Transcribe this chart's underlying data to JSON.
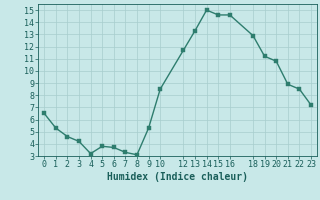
{
  "x": [
    0,
    1,
    2,
    3,
    4,
    5,
    6,
    7,
    8,
    9,
    10,
    12,
    13,
    14,
    15,
    16,
    18,
    19,
    20,
    21,
    22,
    23
  ],
  "y": [
    6.5,
    5.3,
    4.6,
    4.2,
    3.2,
    3.8,
    3.7,
    3.3,
    3.1,
    5.3,
    8.5,
    11.7,
    13.3,
    15.0,
    14.6,
    14.6,
    12.9,
    11.2,
    10.8,
    8.9,
    8.5,
    7.2
  ],
  "line_color": "#2e7d6e",
  "marker_color": "#2e7d6e",
  "bg_color": "#c8e8e8",
  "grid_color": "#a8cece",
  "xlabel": "Humidex (Indice chaleur)",
  "xlim": [
    -0.5,
    23.5
  ],
  "ylim": [
    3,
    15.5
  ],
  "yticks": [
    3,
    4,
    5,
    6,
    7,
    8,
    9,
    10,
    11,
    12,
    13,
    14,
    15
  ],
  "xticks": [
    0,
    1,
    2,
    3,
    4,
    5,
    6,
    7,
    8,
    9,
    10,
    12,
    13,
    14,
    15,
    16,
    18,
    19,
    20,
    21,
    22,
    23
  ],
  "xtick_labels": [
    "0",
    "1",
    "2",
    "3",
    "4",
    "5",
    "6",
    "7",
    "8",
    "9",
    "10",
    "12",
    "13",
    "14",
    "15",
    "16",
    "18",
    "19",
    "20",
    "21",
    "22",
    "23"
  ],
  "font_color": "#1a5f5a",
  "linewidth": 1.0,
  "markersize": 2.5,
  "xlabel_fontsize": 7.0,
  "tick_fontsize": 6.0
}
